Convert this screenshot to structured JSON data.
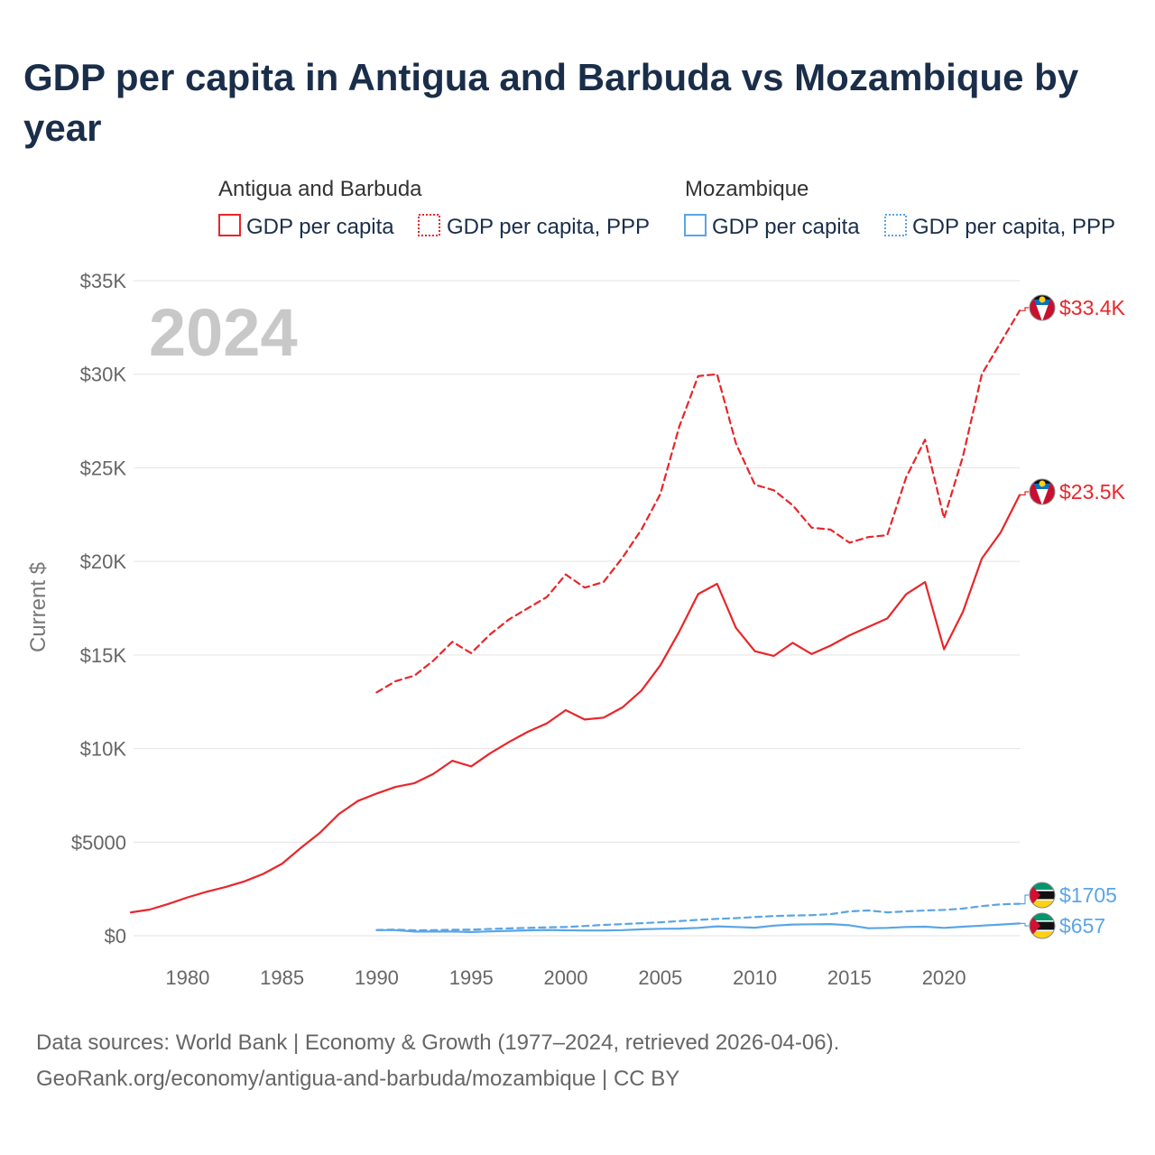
{
  "header": {
    "title": "GDP per capita in Antigua and Barbuda vs Mozambique by year"
  },
  "footer": {
    "source_line1": "Data sources: World Bank | Economy & Growth (1977–2024, retrieved 2026-04-06).",
    "source_line2": "GeoRank.org/economy/antigua-and-barbuda/mozambique | CC BY"
  },
  "colors": {
    "antigua": "#e8262a",
    "mozambique": "#5aa5e6",
    "title": "#1a2e4a"
  },
  "chart_data": {
    "type": "line",
    "title": "GDP per capita in Antigua and Barbuda vs Mozambique by year",
    "year_label": "2024",
    "ylabel": "Current $",
    "xlabel": "",
    "xlim": [
      1977,
      2024
    ],
    "ylim": [
      0,
      35000
    ],
    "grid": true,
    "x_ticks": [
      1980,
      1985,
      1990,
      1995,
      2000,
      2005,
      2010,
      2015,
      2020
    ],
    "y_ticks": [
      {
        "value": 0,
        "label": "$0"
      },
      {
        "value": 5000,
        "label": "$5000"
      },
      {
        "value": 10000,
        "label": "$10K"
      },
      {
        "value": 15000,
        "label": "$15K"
      },
      {
        "value": 20000,
        "label": "$20K"
      },
      {
        "value": 25000,
        "label": "$25K"
      },
      {
        "value": 30000,
        "label": "$30K"
      },
      {
        "value": 35000,
        "label": "$35K"
      }
    ],
    "legend": {
      "placement": "top",
      "groups": [
        {
          "name": "Antigua and Barbuda",
          "items": [
            "GDP per capita",
            "GDP per capita, PPP"
          ]
        },
        {
          "name": "Mozambique",
          "items": [
            "GDP per capita",
            "GDP per capita, PPP"
          ]
        }
      ]
    },
    "series": [
      {
        "name": "Antigua and Barbuda — GDP per capita",
        "country": "antigua",
        "style": "solid",
        "end_label": "$23.5K",
        "x": [
          1977,
          1978,
          1979,
          1980,
          1981,
          1982,
          1983,
          1984,
          1985,
          1986,
          1987,
          1988,
          1989,
          1990,
          1991,
          1992,
          1993,
          1994,
          1995,
          1996,
          1997,
          1998,
          1999,
          2000,
          2001,
          2002,
          2003,
          2004,
          2005,
          2006,
          2007,
          2008,
          2009,
          2010,
          2011,
          2012,
          2013,
          2014,
          2015,
          2016,
          2017,
          2018,
          2019,
          2020,
          2021,
          2022,
          2023,
          2024
        ],
        "values": [
          1250,
          1400,
          1700,
          2050,
          2350,
          2600,
          2900,
          3300,
          3850,
          4700,
          5500,
          6500,
          7200,
          7600,
          7950,
          8150,
          8650,
          9350,
          9050,
          9750,
          10350,
          10900,
          11350,
          12050,
          11550,
          11650,
          12200,
          13100,
          14450,
          16250,
          18250,
          18800,
          16450,
          15200,
          14950,
          15650,
          15050,
          15500,
          16050,
          16500,
          16950,
          18250,
          18900,
          15300,
          17300,
          20150,
          21550,
          23550
        ]
      },
      {
        "name": "Antigua and Barbuda — GDP per capita, PPP",
        "country": "antigua",
        "style": "dashed",
        "end_label": "$33.4K",
        "x": [
          1990,
          1991,
          1992,
          1993,
          1994,
          1995,
          1996,
          1997,
          1998,
          1999,
          2000,
          2001,
          2002,
          2003,
          2004,
          2005,
          2006,
          2007,
          2008,
          2009,
          2010,
          2011,
          2012,
          2013,
          2014,
          2015,
          2016,
          2017,
          2018,
          2019,
          2020,
          2021,
          2022,
          2023,
          2024
        ],
        "values": [
          13000,
          13600,
          13900,
          14700,
          15700,
          15100,
          16100,
          16900,
          17500,
          18100,
          19300,
          18600,
          18900,
          20200,
          21700,
          23600,
          27200,
          29900,
          30000,
          26300,
          24100,
          23800,
          23000,
          21800,
          21700,
          21000,
          21300,
          21400,
          24500,
          26500,
          22300,
          25600,
          30000,
          31700,
          33400
        ]
      },
      {
        "name": "Mozambique — GDP per capita",
        "country": "mozambique",
        "style": "solid",
        "end_label": "$657",
        "x": [
          1990,
          1991,
          1992,
          1993,
          1994,
          1995,
          1996,
          1997,
          1998,
          1999,
          2000,
          2001,
          2002,
          2003,
          2004,
          2005,
          2006,
          2007,
          2008,
          2009,
          2010,
          2011,
          2012,
          2013,
          2014,
          2015,
          2016,
          2017,
          2018,
          2019,
          2020,
          2021,
          2022,
          2023,
          2024
        ],
        "values": [
          300,
          300,
          220,
          220,
          220,
          200,
          230,
          260,
          290,
          310,
          290,
          280,
          280,
          300,
          340,
          370,
          380,
          420,
          500,
          470,
          430,
          540,
          600,
          610,
          620,
          560,
          400,
          420,
          470,
          480,
          420,
          480,
          540,
          600,
          657
        ]
      },
      {
        "name": "Mozambique — GDP per capita, PPP",
        "country": "mozambique",
        "style": "dashed",
        "end_label": "$1705",
        "x": [
          1990,
          1991,
          1992,
          1993,
          1994,
          1995,
          1996,
          1997,
          1998,
          1999,
          2000,
          2001,
          2002,
          2003,
          2004,
          2005,
          2006,
          2007,
          2008,
          2009,
          2010,
          2011,
          2012,
          2013,
          2014,
          2015,
          2016,
          2017,
          2018,
          2019,
          2020,
          2021,
          2022,
          2023,
          2024
        ],
        "values": [
          310,
          330,
          290,
          300,
          320,
          330,
          360,
          390,
          420,
          450,
          470,
          520,
          580,
          620,
          670,
          720,
          780,
          850,
          900,
          940,
          1000,
          1050,
          1080,
          1100,
          1150,
          1300,
          1350,
          1250,
          1300,
          1350,
          1380,
          1450,
          1580,
          1680,
          1705
        ]
      }
    ]
  }
}
